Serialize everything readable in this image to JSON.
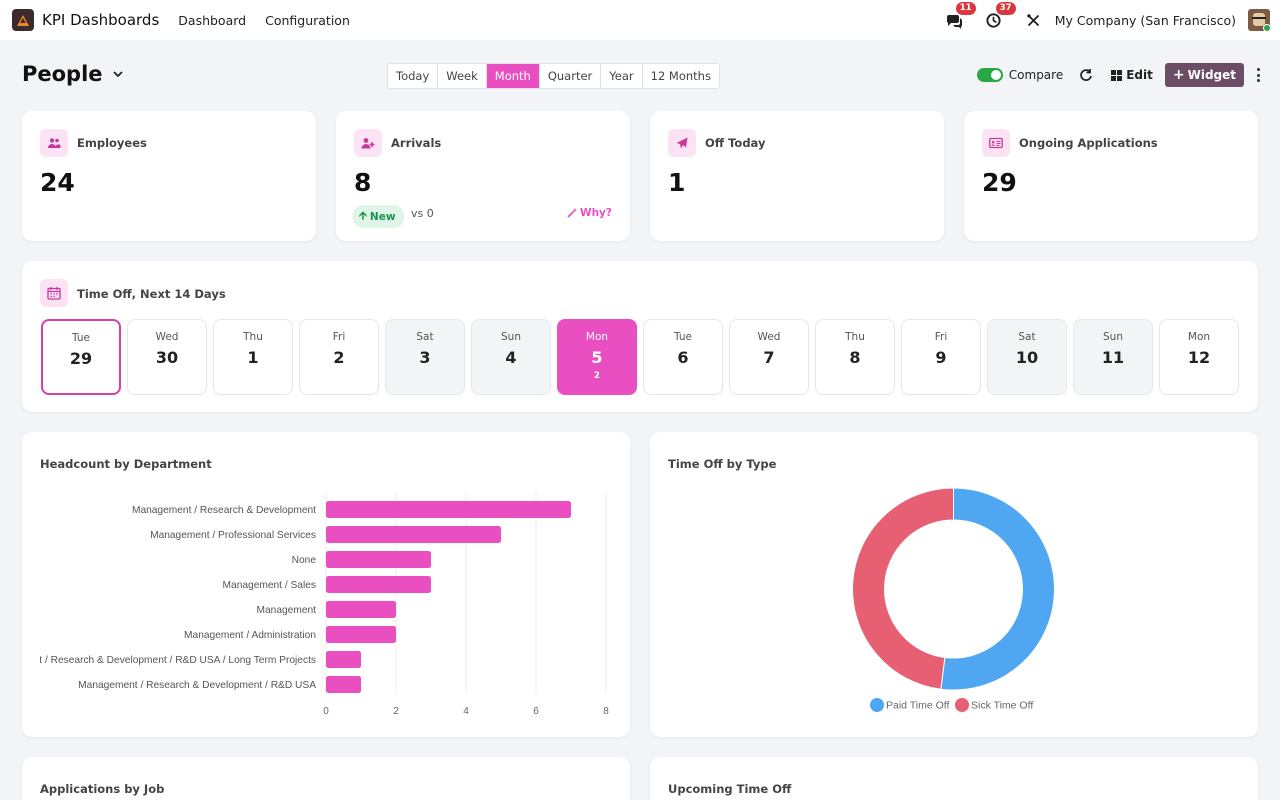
{
  "app": {
    "name": "KPI Dashboards"
  },
  "nav": {
    "items": [
      "Dashboard",
      "Configuration"
    ]
  },
  "systray": {
    "messages_count": "11",
    "activities_count": "37",
    "company": "My Company (San Francisco)"
  },
  "control": {
    "title": "People",
    "periods": [
      "Today",
      "Week",
      "Month",
      "Quarter",
      "Year",
      "12 Months"
    ],
    "active_period": "Month",
    "compare_label": "Compare",
    "compare_on": true,
    "edit_label": "Edit",
    "widget_label": "Widget"
  },
  "kpis": {
    "employees": {
      "label": "Employees",
      "value": "24"
    },
    "arrivals": {
      "label": "Arrivals",
      "value": "8",
      "trend": "New",
      "vs": "vs 0",
      "why": "Why?"
    },
    "off_today": {
      "label": "Off Today",
      "value": "1"
    },
    "applications": {
      "label": "Ongoing Applications",
      "value": "29"
    }
  },
  "timeoff_next": {
    "title": "Time Off, Next 14 Days",
    "days": [
      {
        "name": "Tue",
        "num": "29",
        "count": ""
      },
      {
        "name": "Wed",
        "num": "30",
        "count": ""
      },
      {
        "name": "Thu",
        "num": "1",
        "count": ""
      },
      {
        "name": "Fri",
        "num": "2",
        "count": ""
      },
      {
        "name": "Sat",
        "num": "3",
        "count": ""
      },
      {
        "name": "Sun",
        "num": "4",
        "count": ""
      },
      {
        "name": "Mon",
        "num": "5",
        "count": "2"
      },
      {
        "name": "Tue",
        "num": "6",
        "count": ""
      },
      {
        "name": "Wed",
        "num": "7",
        "count": ""
      },
      {
        "name": "Thu",
        "num": "8",
        "count": ""
      },
      {
        "name": "Fri",
        "num": "9",
        "count": ""
      },
      {
        "name": "Sat",
        "num": "10",
        "count": ""
      },
      {
        "name": "Sun",
        "num": "11",
        "count": ""
      },
      {
        "name": "Mon",
        "num": "12",
        "count": ""
      }
    ]
  },
  "headcount": {
    "title": "Headcount by Department"
  },
  "timeoff_type": {
    "title": "Time Off by Type"
  },
  "applications_by_job": {
    "title": "Applications by Job"
  },
  "upcoming_timeoff": {
    "title": "Upcoming Time Off"
  },
  "colors": {
    "accent": "#e94fc0",
    "bar": "#e94fc0",
    "paid": "#4fa7f2",
    "sick": "#e65f72",
    "widget_button": "#6b4e65"
  },
  "chart_data": [
    {
      "type": "bar",
      "orientation": "horizontal",
      "categories": [
        "Management / Research & Development",
        "Management / Professional Services",
        "None",
        "Management / Sales",
        "Management",
        "Management / Administration",
        "ent / Research & Development / R&D USA / Long Term Projects",
        "Management / Research & Development / R&D USA"
      ],
      "values": [
        7,
        5,
        3,
        3,
        2,
        2,
        1,
        1
      ],
      "xlim": [
        0,
        8
      ],
      "xticks": [
        "0",
        "2",
        "4",
        "6",
        "8"
      ],
      "grid": true
    },
    {
      "type": "pie",
      "style": "donut",
      "labels": [
        "Paid Time Off",
        "Sick Time Off"
      ],
      "values": [
        52,
        48
      ],
      "legend": "bottom"
    }
  ]
}
